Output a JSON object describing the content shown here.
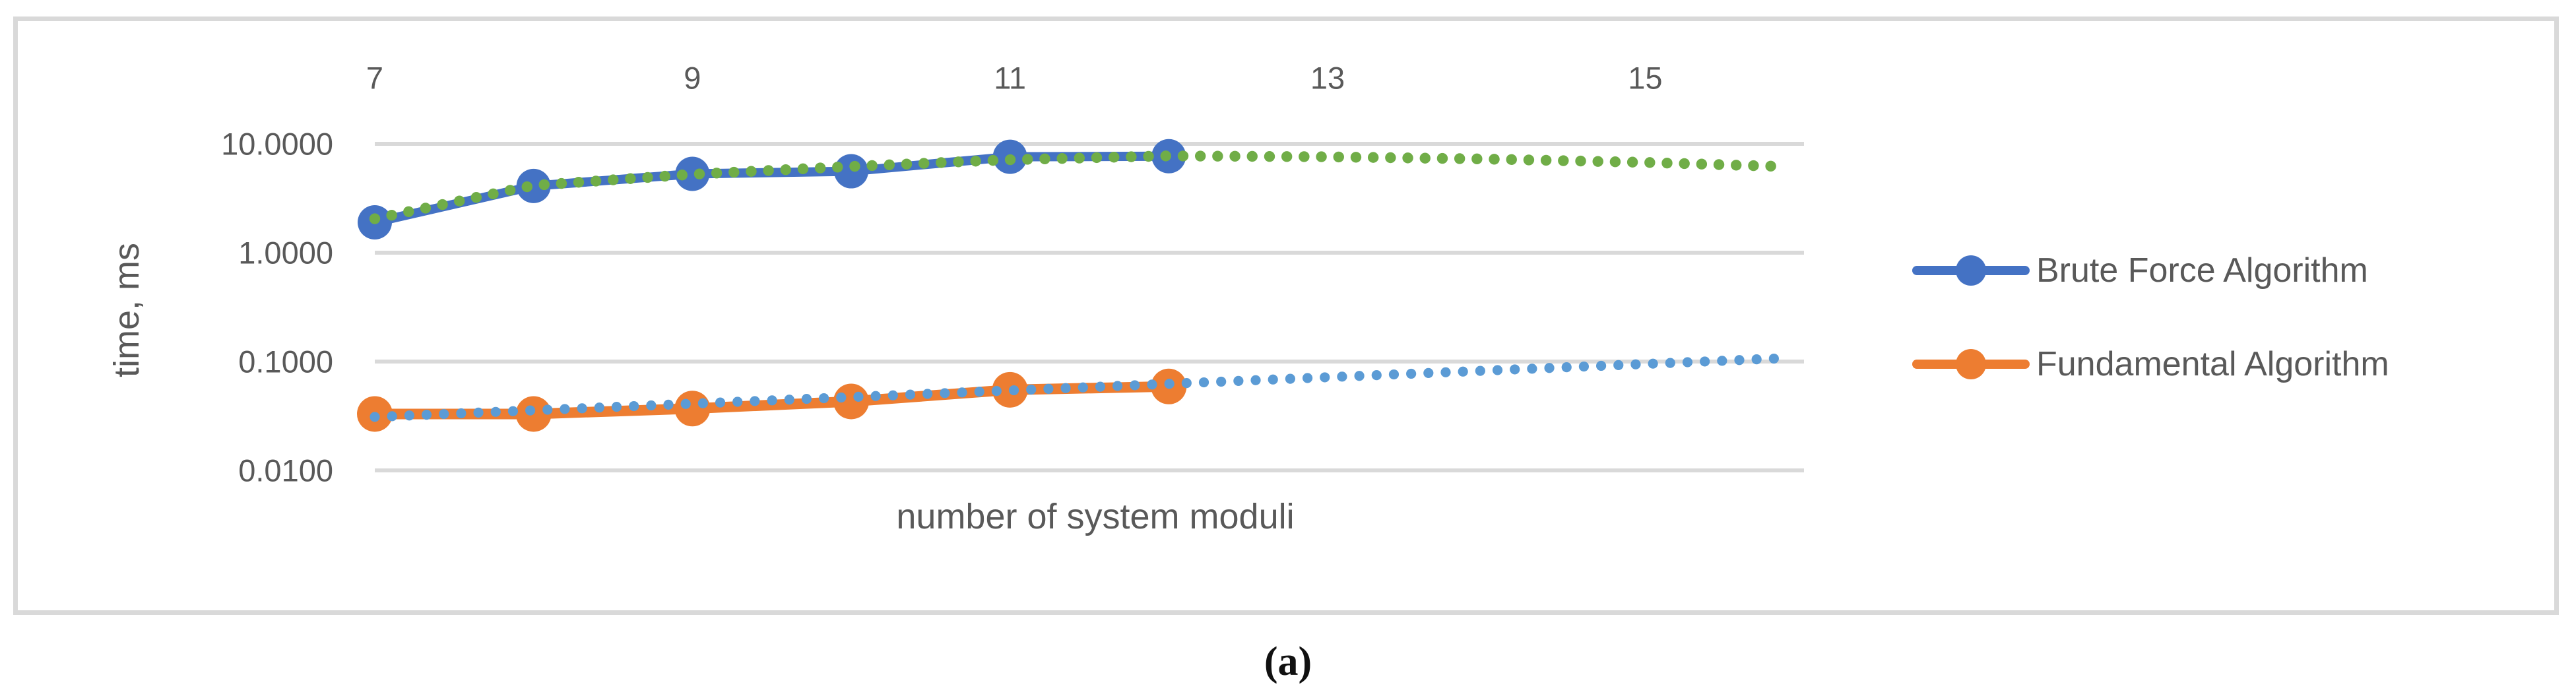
{
  "figure": {
    "caption": "(a)",
    "colors": {
      "brute_force_blue": "#4472C4",
      "fundamental_orange": "#ED7D31",
      "trend_green": "#70AD47",
      "trend_light_blue": "#5B9BD5",
      "axis_text": "#595959",
      "gridline": "#D9D9D9",
      "border": "#D9D9D9"
    }
  },
  "legend": {
    "items": [
      {
        "label": "Brute Force Algorithm"
      },
      {
        "label": "Fundamental Algorithm"
      }
    ]
  },
  "chart_data": {
    "type": "line",
    "title": "",
    "xlabel": "number of system moduli",
    "ylabel": "time, ms",
    "y_scale": "log",
    "x_range": [
      7,
      16
    ],
    "ylim": [
      0.005,
      20
    ],
    "grid": "horizontal",
    "legend_position": "right",
    "x": [
      7,
      8,
      9,
      10,
      11,
      12
    ],
    "x_ticks": [
      {
        "value": 7,
        "label": "7"
      },
      {
        "value": 9,
        "label": "9"
      },
      {
        "value": 11,
        "label": "11"
      },
      {
        "value": 13,
        "label": "13"
      },
      {
        "value": 15,
        "label": "15"
      }
    ],
    "y_ticks": [
      {
        "value": 10,
        "label": "10.0000"
      },
      {
        "value": 1,
        "label": "1.0000"
      },
      {
        "value": 0.1,
        "label": "0.1000"
      },
      {
        "value": 0.01,
        "label": "0.0100"
      }
    ],
    "series": [
      {
        "name": "Brute Force Algorithm",
        "color": "#4472C4",
        "marker": "circle",
        "values": [
          1.9,
          4.1,
          5.3,
          5.6,
          7.6,
          7.7
        ]
      },
      {
        "name": "Fundamental Algorithm",
        "color": "#ED7D31",
        "marker": "circle",
        "values": [
          0.033,
          0.033,
          0.037,
          0.043,
          0.055,
          0.059
        ]
      }
    ],
    "trendlines": [
      {
        "name": "trend-of-brute-force",
        "style": "dotted",
        "color": "#70AD47",
        "x": [
          7,
          8,
          9,
          10,
          11,
          12,
          13,
          14,
          15,
          15.85
        ],
        "v": [
          2.05,
          4.15,
          5.25,
          6.2,
          7.15,
          7.75,
          7.6,
          7.25,
          6.75,
          6.2
        ]
      },
      {
        "name": "trend-of-fundamental",
        "style": "dotted",
        "color": "#5B9BD5",
        "x": [
          7,
          15.85
        ],
        "v": [
          0.031,
          0.107
        ]
      }
    ]
  }
}
